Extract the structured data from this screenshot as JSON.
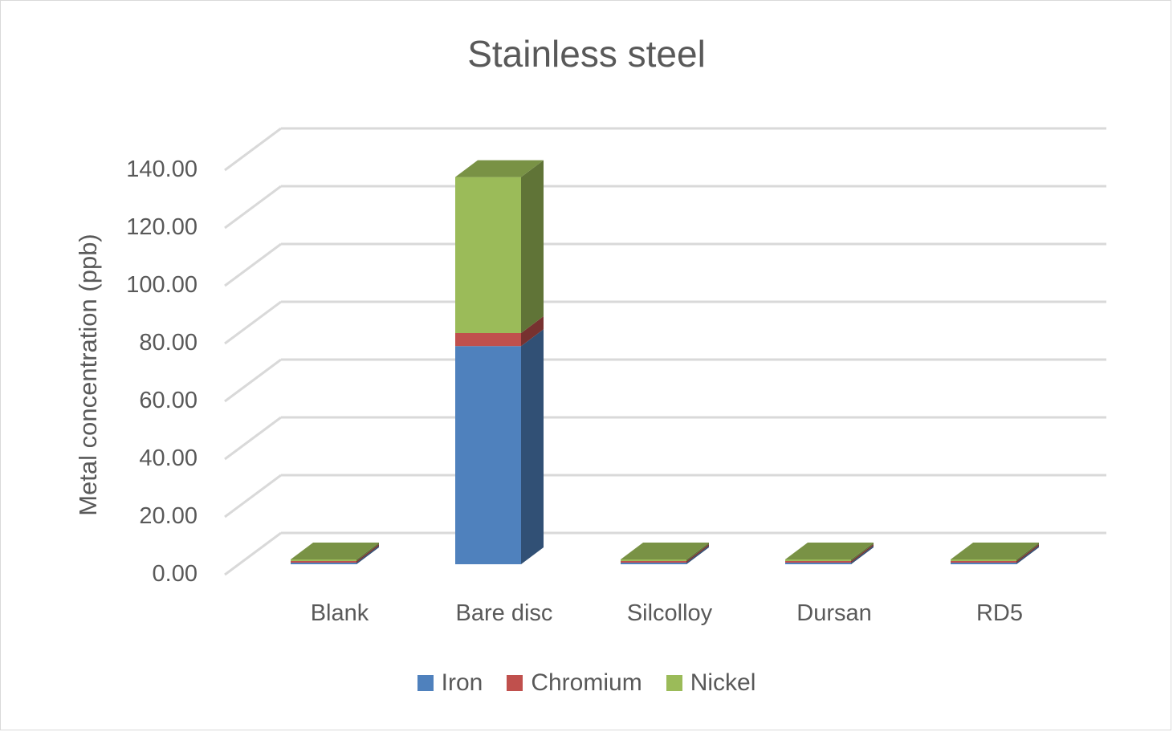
{
  "chart_data": {
    "type": "bar",
    "subtype": "3d-stacked-column",
    "title": "Stainless steel",
    "xlabel": "",
    "ylabel": "Metal concentration (ppb)",
    "ylim": [
      0,
      140
    ],
    "yticks": [
      "0.00",
      "20.00",
      "40.00",
      "60.00",
      "80.00",
      "100.00",
      "120.00",
      "140.00"
    ],
    "categories": [
      "Blank",
      "Bare disc",
      "Silcolloy",
      "Dursan",
      "RD5"
    ],
    "series": [
      {
        "name": "Iron",
        "color": "#4f81bd",
        "values": [
          0.5,
          75.5,
          0.5,
          0.5,
          0.5
        ]
      },
      {
        "name": "Chromium",
        "color": "#c0504d",
        "values": [
          0.1,
          4.5,
          0.1,
          0.1,
          0.1
        ]
      },
      {
        "name": "Nickel",
        "color": "#9bbb59",
        "values": [
          0.1,
          54.0,
          0.1,
          0.1,
          0.1
        ]
      }
    ],
    "grid": true,
    "legend_position": "bottom"
  },
  "legend": [
    "Iron",
    "Chromium",
    "Nickel"
  ]
}
